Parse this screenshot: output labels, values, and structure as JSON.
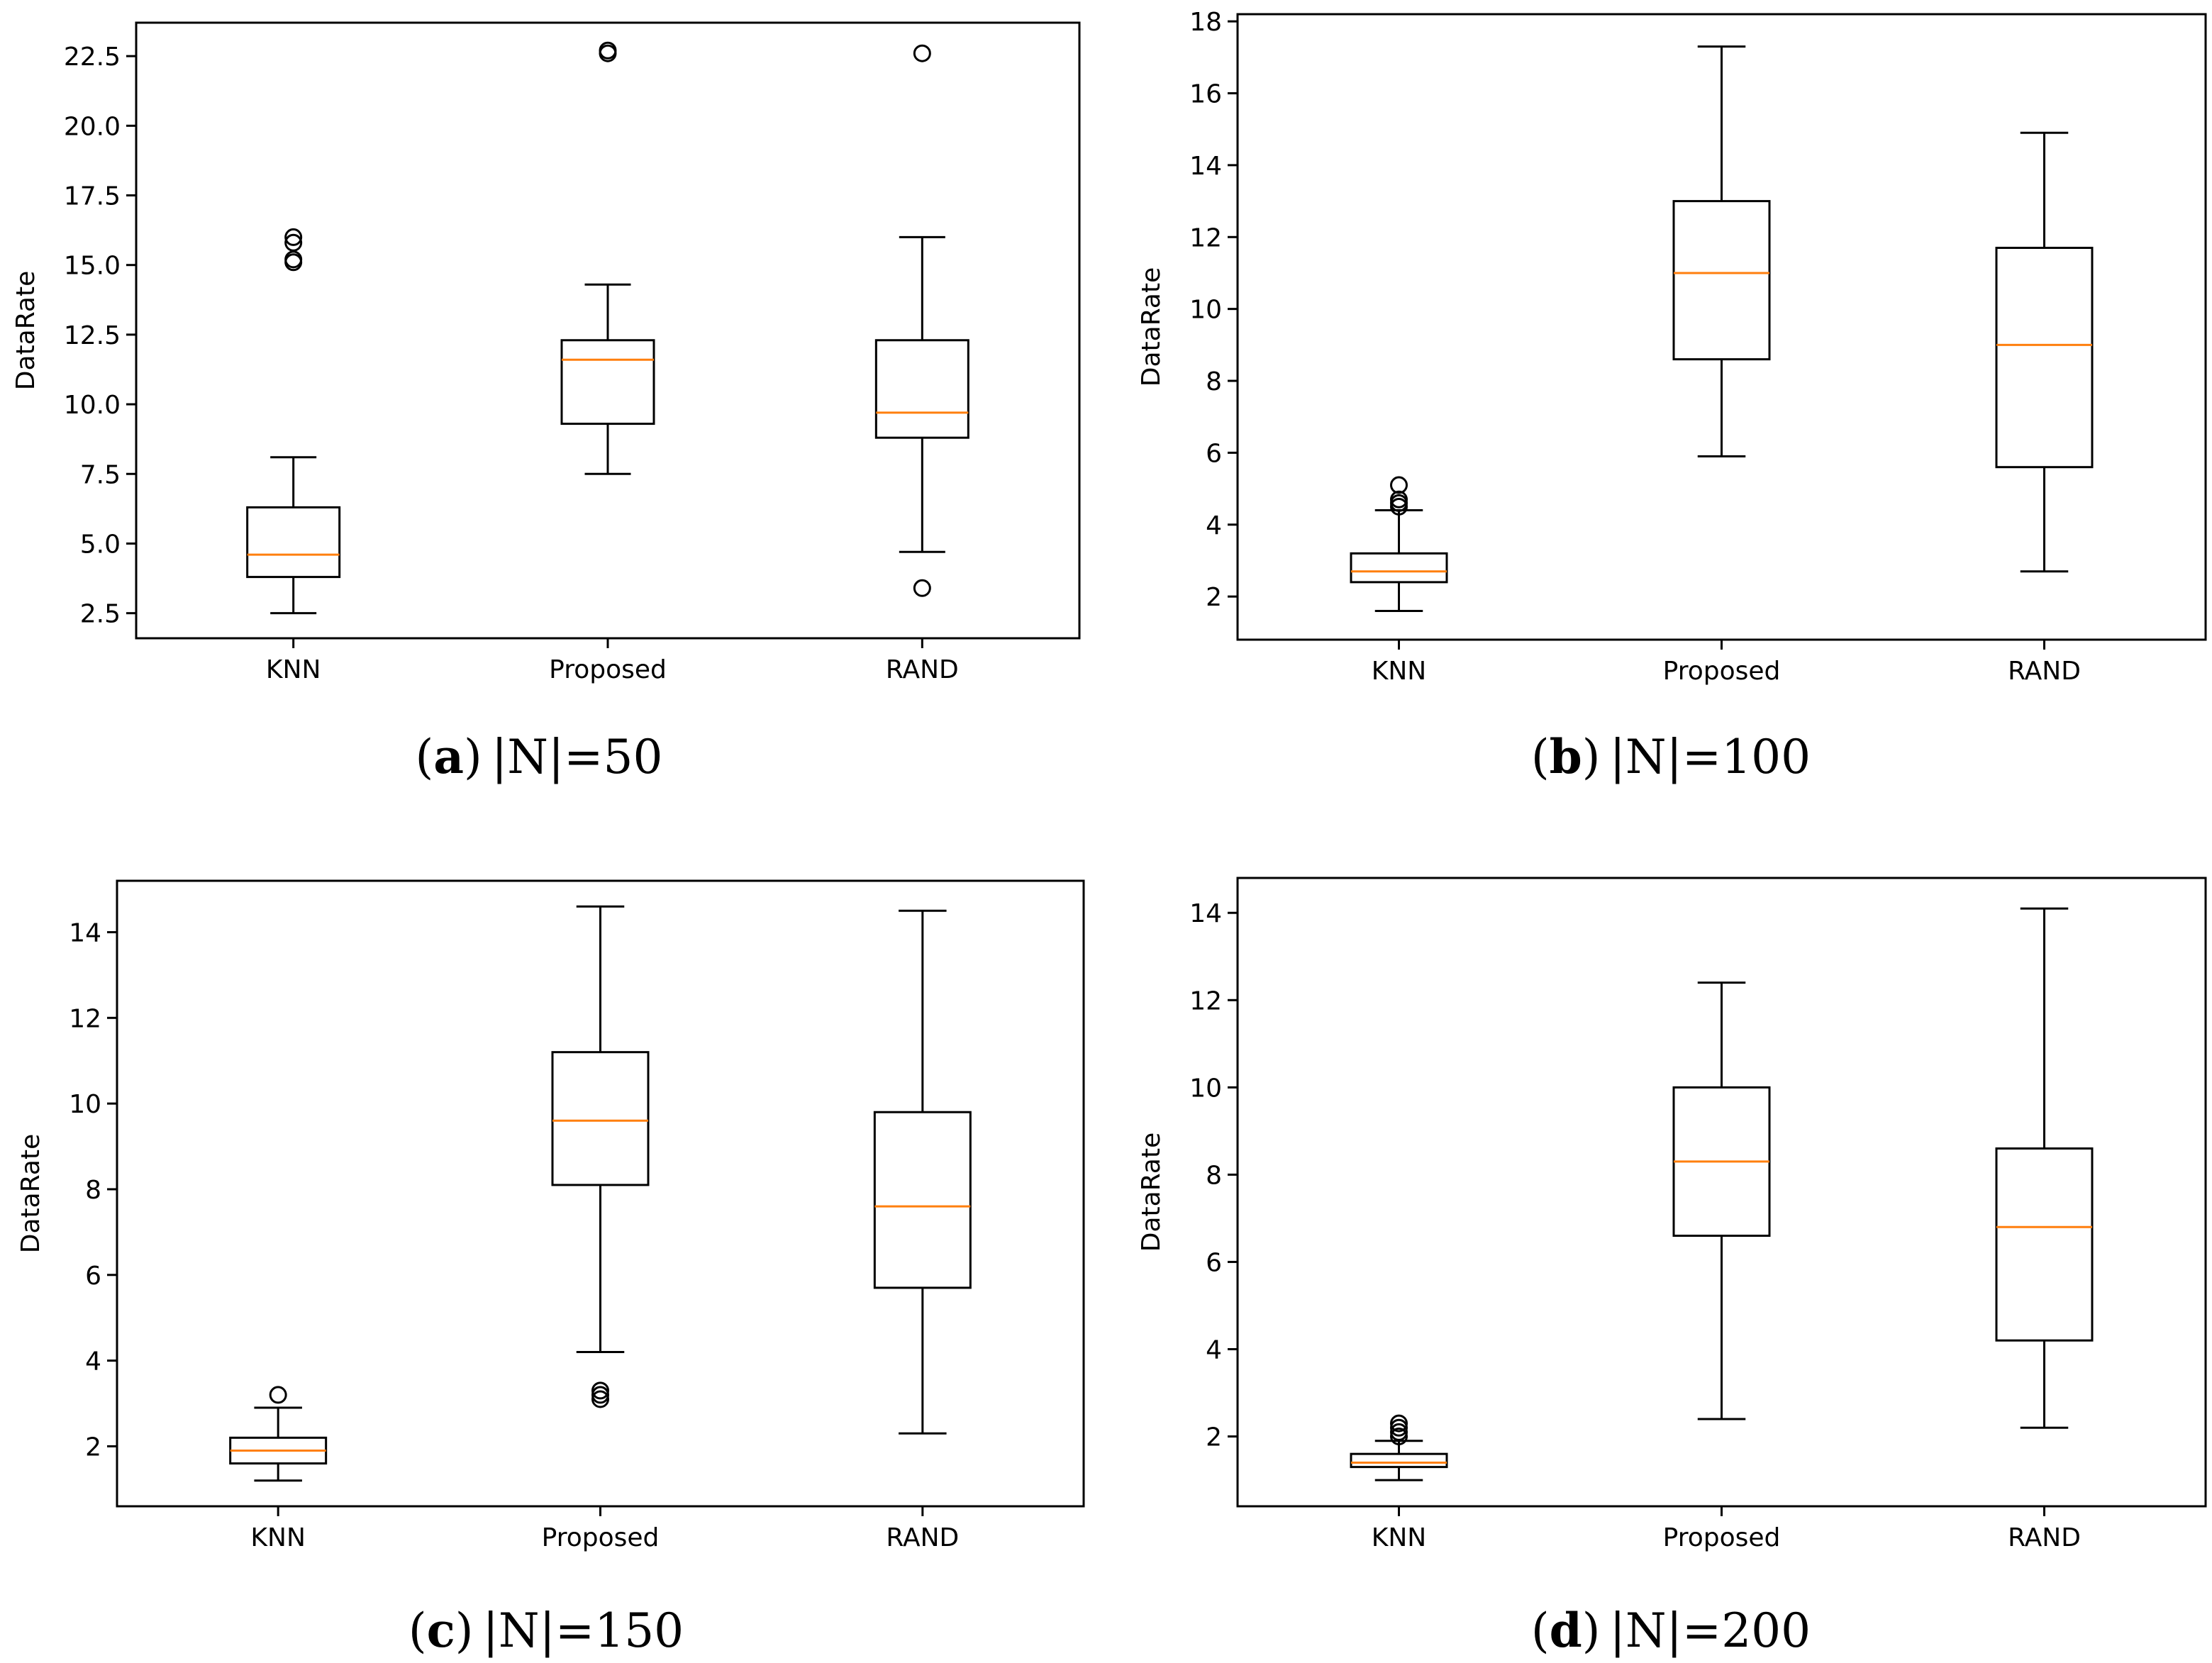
{
  "panels": [
    {
      "caption_letter": "a",
      "caption_prefix": "(",
      "caption_suffix": ")",
      "caption_value": " |N|=50"
    },
    {
      "caption_letter": "b",
      "caption_prefix": "(",
      "caption_suffix": ")",
      "caption_value": " |N|=100"
    },
    {
      "caption_letter": "c",
      "caption_prefix": "(",
      "caption_suffix": ")",
      "caption_value": " |N|=150"
    },
    {
      "caption_letter": "d",
      "caption_prefix": "(",
      "caption_suffix": ")",
      "caption_value": " |N|=200"
    }
  ],
  "colors": {
    "box": "#000000",
    "median": "#ff7f0e",
    "background": "#ffffff"
  },
  "chart_data": [
    {
      "type": "boxplot",
      "ylabel": "DataRate",
      "categories": [
        "KNN",
        "Proposed",
        "RAND"
      ],
      "ylim": [
        1.6,
        23.7
      ],
      "yticks": [
        2.5,
        5.0,
        7.5,
        10.0,
        12.5,
        15.0,
        17.5,
        20.0,
        22.5
      ],
      "ytick_labels": [
        "2.5",
        "5.0",
        "7.5",
        "10.0",
        "12.5",
        "15.0",
        "17.5",
        "20.0",
        "22.5"
      ],
      "boxes": [
        {
          "whislo": 2.5,
          "q1": 3.8,
          "med": 4.6,
          "q3": 6.3,
          "whishi": 8.1,
          "fliers": [
            15.1,
            15.2,
            15.8,
            16.0
          ]
        },
        {
          "whislo": 7.5,
          "q1": 9.3,
          "med": 11.6,
          "q3": 12.3,
          "whishi": 14.3,
          "fliers": [
            22.6,
            22.7
          ]
        },
        {
          "whislo": 4.7,
          "q1": 8.8,
          "med": 9.7,
          "q3": 12.3,
          "whishi": 16.0,
          "fliers": [
            3.4,
            22.6
          ]
        }
      ]
    },
    {
      "type": "boxplot",
      "ylabel": "DataRate",
      "categories": [
        "KNN",
        "Proposed",
        "RAND"
      ],
      "ylim": [
        0.8,
        18.2
      ],
      "yticks": [
        2,
        4,
        6,
        8,
        10,
        12,
        14,
        16,
        18
      ],
      "ytick_labels": [
        "2",
        "4",
        "6",
        "8",
        "10",
        "12",
        "14",
        "16",
        "18"
      ],
      "boxes": [
        {
          "whislo": 1.6,
          "q1": 2.4,
          "med": 2.7,
          "q3": 3.2,
          "whishi": 4.4,
          "fliers": [
            4.5,
            4.6,
            4.7,
            5.1
          ]
        },
        {
          "whislo": 5.9,
          "q1": 8.6,
          "med": 11.0,
          "q3": 13.0,
          "whishi": 17.3,
          "fliers": []
        },
        {
          "whislo": 2.7,
          "q1": 5.6,
          "med": 9.0,
          "q3": 11.7,
          "whishi": 14.9,
          "fliers": []
        }
      ]
    },
    {
      "type": "boxplot",
      "ylabel": "DataRate",
      "categories": [
        "KNN",
        "Proposed",
        "RAND"
      ],
      "ylim": [
        0.6,
        15.2
      ],
      "yticks": [
        2,
        4,
        6,
        8,
        10,
        12,
        14
      ],
      "ytick_labels": [
        "2",
        "4",
        "6",
        "8",
        "10",
        "12",
        "14"
      ],
      "boxes": [
        {
          "whislo": 1.2,
          "q1": 1.6,
          "med": 1.9,
          "q3": 2.2,
          "whishi": 2.9,
          "fliers": [
            3.2
          ]
        },
        {
          "whislo": 4.2,
          "q1": 8.1,
          "med": 9.6,
          "q3": 11.2,
          "whishi": 14.6,
          "fliers": [
            3.1,
            3.2,
            3.3
          ]
        },
        {
          "whislo": 2.3,
          "q1": 5.7,
          "med": 7.6,
          "q3": 9.8,
          "whishi": 14.5,
          "fliers": []
        }
      ]
    },
    {
      "type": "boxplot",
      "ylabel": "DataRate",
      "categories": [
        "KNN",
        "Proposed",
        "RAND"
      ],
      "ylim": [
        0.4,
        14.8
      ],
      "yticks": [
        2,
        4,
        6,
        8,
        10,
        12,
        14
      ],
      "ytick_labels": [
        "2",
        "4",
        "6",
        "8",
        "10",
        "12",
        "14"
      ],
      "boxes": [
        {
          "whislo": 1.0,
          "q1": 1.3,
          "med": 1.4,
          "q3": 1.6,
          "whishi": 1.9,
          "fliers": [
            2.0,
            2.1,
            2.2,
            2.3
          ]
        },
        {
          "whislo": 2.4,
          "q1": 6.6,
          "med": 8.3,
          "q3": 10.0,
          "whishi": 12.4,
          "fliers": []
        },
        {
          "whislo": 2.2,
          "q1": 4.2,
          "med": 6.8,
          "q3": 8.6,
          "whishi": 14.1,
          "fliers": []
        }
      ]
    }
  ]
}
